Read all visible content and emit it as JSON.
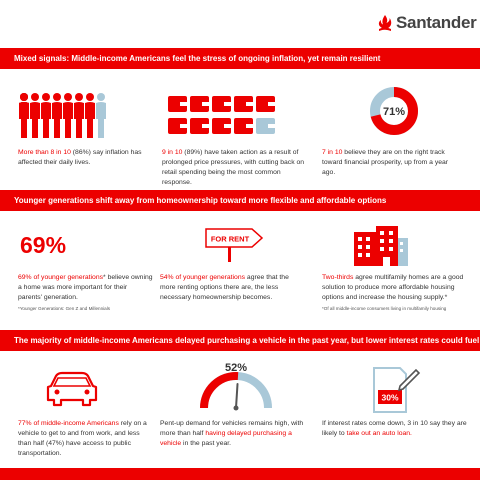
{
  "brand": {
    "name": "Santander",
    "color": "#ec0000"
  },
  "sections": [
    {
      "title": "Mixed signals: Middle-income Americans feel the stress of ongoing inflation, yet remain resilient"
    },
    {
      "title": "Younger generations shift away from homeownership toward more flexible and affordable options"
    },
    {
      "title": "The majority of middle-income Americans delayed purchasing a vehicle in the past year, but lower interest rates could fuel purchases"
    }
  ],
  "stat1": {
    "highlight": "More than 8 in 10",
    "rest": " (86%) say inflation has affected their daily lives.",
    "icon": "people-icon"
  },
  "stat2": {
    "highlight": "9 in 10",
    "rest": " (89%) have taken action as a result of prolonged price pressures, with cutting back on retail spending being the most common response.",
    "icon": "wallet-icon"
  },
  "stat3": {
    "donut_label": "71%",
    "donut_value": 0.71,
    "highlight": "7 in 10",
    "rest": " believe they are on the right track toward financial prosperity, up from a year ago."
  },
  "stat4": {
    "big": "69%",
    "highlight": "69% of younger generations",
    "rest": "* believe owning a home was more important for their parents' generation.",
    "note": "*Younger Generations: Gen Z and Millennials"
  },
  "stat5": {
    "sign": "FOR RENT",
    "highlight": "54% of younger generations",
    "rest": " agree that the more renting options there are, the less necessary homeownership becomes."
  },
  "stat6": {
    "highlight": "Two-thirds",
    "rest": " agree multifamily homes are a good solution to produce more affordable housing options and increase the housing supply.*",
    "note": "*Of all middle-income consumers living in multifamily housing",
    "icon": "apartment-icon"
  },
  "stat7": {
    "highlight": "77% of middle-income Americans",
    "rest": " rely on a vehicle to get to and from work, and less than half (47%) have access to public transportation.",
    "icon": "car-icon"
  },
  "stat8": {
    "gauge_label": "52%",
    "gauge_value": 0.52,
    "text": "Pent-up demand for vehicles remains high, with more than half ",
    "highlight": "having delayed purchasing a vehicle",
    "tail": " in the past year."
  },
  "stat9": {
    "badge": "30%",
    "text": "If interest rates come down, 3 in 10 say they are likely to ",
    "highlight": "take out an auto loan.",
    "icon": "document-pen-icon"
  }
}
